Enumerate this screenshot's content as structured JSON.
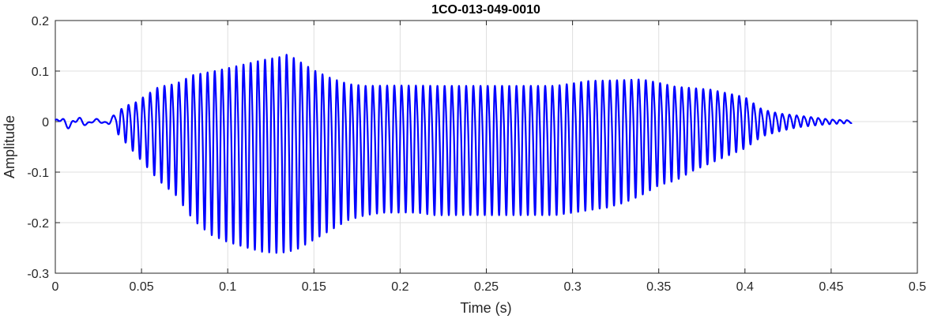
{
  "chart_data": {
    "type": "line",
    "title": "1CO-013-049-0010",
    "xlabel": "Time (s)",
    "ylabel": "Amplitude",
    "xlim": [
      0,
      0.5
    ],
    "ylim": [
      -0.3,
      0.2
    ],
    "grid": true,
    "xticks": [
      0,
      0.05,
      0.1,
      0.15,
      0.2,
      0.25,
      0.3,
      0.35,
      0.4,
      0.45,
      0.5
    ],
    "xtick_labels": [
      "0",
      "0.05",
      "0.1",
      "0.15",
      "0.2",
      "0.25",
      "0.3",
      "0.35",
      "0.4",
      "0.45",
      "0.5"
    ],
    "yticks": [
      -0.3,
      -0.2,
      -0.1,
      0,
      0.1,
      0.2
    ],
    "ytick_labels": [
      "-0.3",
      "-0.2",
      "-0.1",
      "0",
      "0.1",
      "0.2"
    ],
    "line_color": "#0000ff",
    "series": [
      {
        "x": [
          0,
          0.01,
          0.02,
          0.03,
          0.035,
          0.04,
          0.045,
          0.05,
          0.06,
          0.07,
          0.08,
          0.09,
          0.1,
          0.11,
          0.12,
          0.13,
          0.135,
          0.14,
          0.15,
          0.16,
          0.17,
          0.18,
          0.19,
          0.2,
          0.21,
          0.22,
          0.23,
          0.24,
          0.25,
          0.26,
          0.27,
          0.28,
          0.29,
          0.3,
          0.31,
          0.32,
          0.33,
          0.34,
          0.35,
          0.36,
          0.37,
          0.38,
          0.39,
          0.4,
          0.41,
          0.42,
          0.43,
          0.44,
          0.45,
          0.462
        ],
        "upper": [
          0.008,
          0.012,
          0.005,
          0.006,
          0.015,
          0.04,
          0.045,
          0.06,
          0.09,
          0.1,
          0.125,
          0.135,
          0.145,
          0.155,
          0.165,
          0.172,
          0.178,
          0.165,
          0.14,
          0.12,
          0.105,
          0.1,
          0.1,
          0.1,
          0.1,
          0.1,
          0.1,
          0.1,
          0.1,
          0.1,
          0.1,
          0.1,
          0.1,
          0.105,
          0.11,
          0.11,
          0.11,
          0.11,
          0.1,
          0.09,
          0.085,
          0.08,
          0.07,
          0.06,
          0.03,
          0.02,
          0.015,
          0.01,
          0.005,
          0.003
        ],
        "lower": [
          -0.01,
          -0.015,
          -0.006,
          -0.005,
          -0.02,
          -0.04,
          -0.06,
          -0.08,
          -0.12,
          -0.15,
          -0.2,
          -0.23,
          -0.245,
          -0.255,
          -0.265,
          -0.268,
          -0.265,
          -0.26,
          -0.24,
          -0.22,
          -0.2,
          -0.19,
          -0.185,
          -0.185,
          -0.185,
          -0.19,
          -0.19,
          -0.19,
          -0.19,
          -0.19,
          -0.19,
          -0.19,
          -0.19,
          -0.185,
          -0.18,
          -0.175,
          -0.165,
          -0.15,
          -0.13,
          -0.12,
          -0.1,
          -0.085,
          -0.07,
          -0.055,
          -0.03,
          -0.02,
          -0.012,
          -0.008,
          -0.005,
          -0.003
        ],
        "frequency_hz": 240,
        "smooth_until_s": 0.035,
        "end_s": 0.462
      }
    ]
  }
}
